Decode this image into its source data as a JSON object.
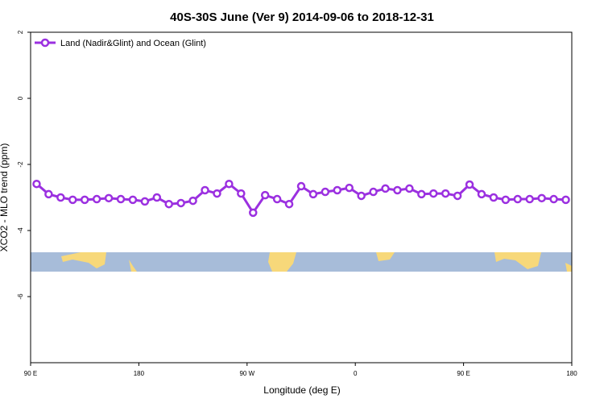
{
  "chart_data": {
    "type": "line",
    "title": "40S-30S June (Ver 9)   2014-09-06 to 2018-12-31",
    "x_label": "Longitude (deg E)",
    "y_label": "XCO2 - MLO trend (ppm)",
    "x": [
      95,
      105,
      115,
      125,
      135,
      145,
      155,
      165,
      175,
      185,
      195,
      205,
      215,
      225,
      235,
      245,
      255,
      265,
      275,
      285,
      295,
      305,
      315,
      325,
      335,
      345,
      355,
      365,
      375,
      385,
      395,
      405,
      415,
      425,
      435,
      445,
      455,
      465,
      475,
      485,
      495,
      505,
      515,
      525,
      535
    ],
    "series": [
      {
        "name": "Land (Nadir&Glint) and Ocean (Glint)",
        "color": "#9b30e0",
        "values": [
          -2.59,
          -2.9,
          -3.0,
          -3.07,
          -3.07,
          -3.05,
          -3.02,
          -3.05,
          -3.07,
          -3.12,
          -3.0,
          -3.2,
          -3.17,
          -3.1,
          -2.78,
          -2.88,
          -2.59,
          -2.88,
          -3.46,
          -2.93,
          -3.05,
          -3.2,
          -2.66,
          -2.9,
          -2.83,
          -2.78,
          -2.71,
          -2.95,
          -2.83,
          -2.73,
          -2.78,
          -2.73,
          -2.9,
          -2.88,
          -2.88,
          -2.95,
          -2.61,
          -2.9,
          -3.0,
          -3.07,
          -3.05,
          -3.05,
          -3.02,
          -3.05,
          -3.07
        ]
      }
    ],
    "xlim": [
      90,
      540
    ],
    "xticks": [
      {
        "value": 90,
        "label": "90 E"
      },
      180,
      {
        "value": 270,
        "label": "90 W"
      },
      {
        "value": 360,
        "label": "0"
      },
      {
        "value": 450,
        "label": "90 E"
      },
      {
        "value": 540,
        "label": "180"
      }
    ],
    "ylim": [
      -8,
      2
    ],
    "yticks": [
      2,
      0,
      -2,
      -4,
      -6
    ],
    "legend": "top-left"
  }
}
